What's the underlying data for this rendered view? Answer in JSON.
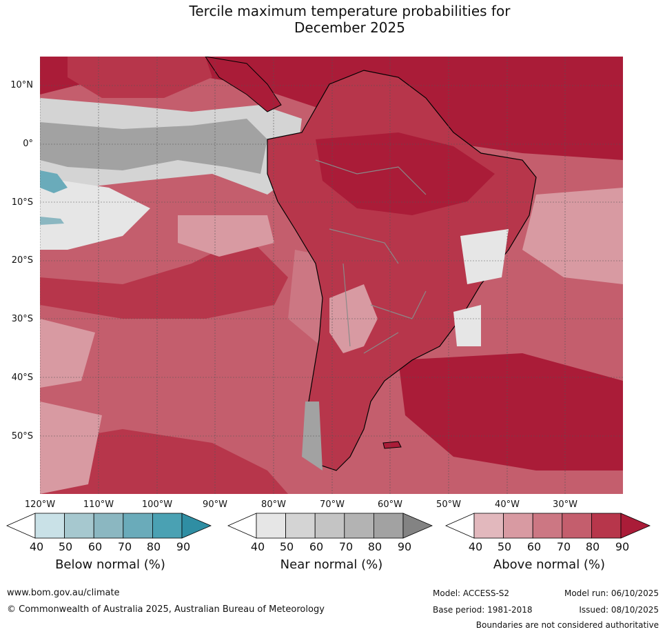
{
  "title": {
    "line1": "Tercile maximum temperature probabilities for",
    "line2": "December 2025"
  },
  "map": {
    "lat_labels": [
      "10°N",
      "0°",
      "10°S",
      "20°S",
      "30°S",
      "40°S",
      "50°S"
    ],
    "lon_labels": [
      "120°W",
      "110°W",
      "100°W",
      "90°W",
      "80°W",
      "70°W",
      "60°W",
      "50°W",
      "40°W",
      "30°W"
    ],
    "ocean_color": "#c44a5d",
    "land_outline_color": "#000000",
    "border_color": "#8a8a8a"
  },
  "colorbars": {
    "ticks": [
      "40",
      "50",
      "60",
      "70",
      "80",
      "90"
    ],
    "below": {
      "title": "Below normal (%)",
      "colors": [
        "#ffffff",
        "#c9e1e7",
        "#a6c8cf",
        "#8bb7c1",
        "#6aabba",
        "#4aa1b3",
        "#2f8ea3"
      ]
    },
    "near": {
      "title": "Near normal (%)",
      "colors": [
        "#ffffff",
        "#e6e6e6",
        "#d4d4d4",
        "#c4c4c4",
        "#b3b3b3",
        "#a2a2a2",
        "#838383"
      ]
    },
    "above": {
      "title": "Above normal (%)",
      "colors": [
        "#ffffff",
        "#e2b8bd",
        "#d89aa2",
        "#cc7783",
        "#c45e6d",
        "#b7364b",
        "#aa1c38"
      ]
    }
  },
  "footer": {
    "website": "www.bom.gov.au/climate",
    "copyright": "© Commonwealth of Australia 2025, Australian Bureau of Meteorology",
    "model": "Model: ACCESS-S2",
    "model_run": "Model run: 06/10/2025",
    "base_period": "Base period: 1981-2018",
    "issued": "Issued: 08/10/2025",
    "disclaimer": "Boundaries are not considered authoritative"
  }
}
